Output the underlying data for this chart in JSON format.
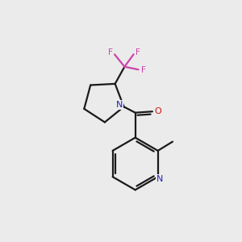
{
  "background_color": "#ebebeb",
  "bond_color": "#1a1a1a",
  "nitrogen_color": "#2222bb",
  "oxygen_color": "#cc1111",
  "fluorine_color": "#cc44aa",
  "figsize": [
    3.0,
    3.0
  ],
  "dpi": 100,
  "lw": 1.6,
  "fs": 7.5,
  "xlim": [
    0,
    10
  ],
  "ylim": [
    0,
    10
  ]
}
